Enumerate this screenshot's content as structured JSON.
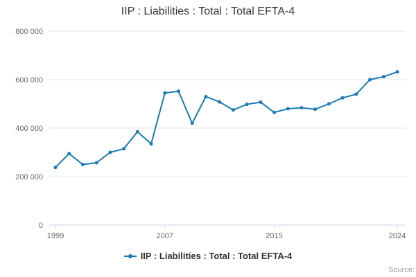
{
  "chart_data": {
    "type": "line",
    "title": "IIP : Liabilities : Total : Total EFTA-4",
    "xlabel": "",
    "ylabel": "",
    "x": [
      1999,
      2000,
      2001,
      2002,
      2003,
      2004,
      2005,
      2006,
      2007,
      2008,
      2009,
      2010,
      2011,
      2012,
      2013,
      2014,
      2015,
      2016,
      2017,
      2018,
      2019,
      2020,
      2021,
      2022,
      2023,
      2024
    ],
    "series": [
      {
        "name": "IIP : Liabilities : Total : Total EFTA-4",
        "color": "#1a7ab5",
        "values": [
          238000,
          295000,
          250000,
          257000,
          300000,
          315000,
          385000,
          335000,
          545000,
          552000,
          420000,
          530000,
          508000,
          475000,
          498000,
          507000,
          465000,
          480000,
          484000,
          478000,
          500000,
          525000,
          540000,
          600000,
          612000,
          632000
        ]
      }
    ],
    "ylim": [
      0,
      800000
    ],
    "yticks": [
      0,
      200000,
      400000,
      600000,
      800000
    ],
    "ytick_labels": [
      "0",
      "200 000",
      "400 000",
      "600 000",
      "800 000"
    ],
    "xticks": [
      1999,
      2007,
      2015,
      2024
    ],
    "grid": "horizontal",
    "grid_color": "#e6e6e6",
    "axis_line_color": "#ccd6eb",
    "tick_label_color": "#666666",
    "legend_position": "bottom"
  },
  "source": {
    "label": "Source:"
  }
}
